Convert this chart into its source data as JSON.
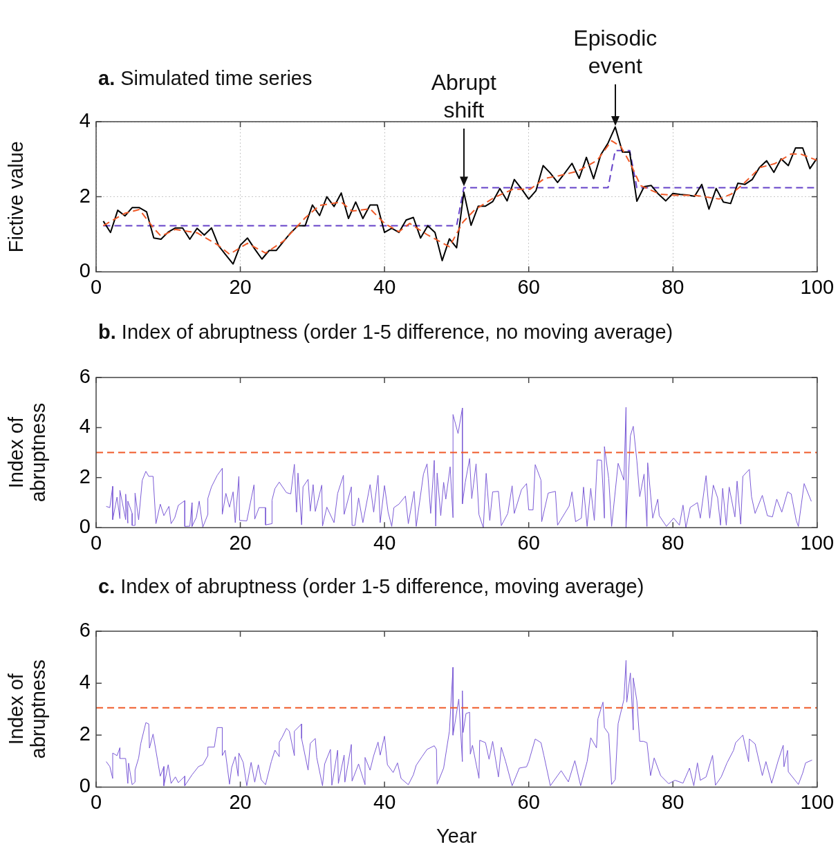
{
  "chart_data": [
    {
      "type": "line",
      "title": "a. Simulated time series",
      "ylabel": "Fictive value",
      "xlim": [
        0,
        100
      ],
      "xticks": [
        0,
        20,
        40,
        60,
        80,
        100
      ],
      "ylim": [
        0,
        4
      ],
      "yticks": [
        0,
        2,
        4
      ],
      "grid": true,
      "marker": "none",
      "x": [
        1,
        2,
        3,
        4,
        5,
        6,
        7,
        8,
        9,
        10,
        11,
        12,
        13,
        14,
        15,
        16,
        17,
        18,
        19,
        20,
        21,
        22,
        23,
        24,
        25,
        26,
        27,
        28,
        29,
        30,
        31,
        32,
        33,
        34,
        35,
        36,
        37,
        38,
        39,
        40,
        41,
        42,
        43,
        44,
        45,
        46,
        47,
        48,
        49,
        50,
        51,
        52,
        53,
        54,
        55,
        56,
        57,
        58,
        59,
        60,
        61,
        62,
        63,
        64,
        65,
        66,
        67,
        68,
        69,
        70,
        71,
        72,
        73,
        74,
        75,
        76,
        77,
        78,
        79,
        80,
        81,
        82,
        83,
        84,
        85,
        86,
        87,
        88,
        89,
        90,
        91,
        92,
        93,
        94,
        95,
        96,
        97,
        98,
        99,
        100
      ],
      "annotations": [
        {
          "text": "Abrupt shift",
          "x": 51,
          "y": 2.24
        },
        {
          "text": "Episodic event",
          "x": 72,
          "y": 3.86
        }
      ],
      "series": [
        {
          "color": "#6440c8",
          "line_style": "dashed",
          "x": [
            1,
            50,
            51,
            71,
            72,
            74,
            75,
            100
          ],
          "values": [
            1.23,
            1.23,
            2.24,
            2.24,
            3.23,
            3.23,
            2.24,
            2.24
          ]
        },
        {
          "color": "#000000",
          "values": [
            1.35,
            1.05,
            1.64,
            1.49,
            1.71,
            1.71,
            1.6,
            0.9,
            0.87,
            1.06,
            1.17,
            1.17,
            0.87,
            1.16,
            0.98,
            1.17,
            0.69,
            0.45,
            0.21,
            0.71,
            0.9,
            0.61,
            0.34,
            0.57,
            0.57,
            0.81,
            1.04,
            1.23,
            1.23,
            1.78,
            1.5,
            2.0,
            1.74,
            2.1,
            1.42,
            1.86,
            1.42,
            1.78,
            1.78,
            1.05,
            1.16,
            1.05,
            1.38,
            1.45,
            0.9,
            1.23,
            1.05,
            0.3,
            0.88,
            0.64,
            2.12,
            1.24,
            1.75,
            1.75,
            1.87,
            2.22,
            1.89,
            2.46,
            2.21,
            1.94,
            2.16,
            2.83,
            2.63,
            2.38,
            2.63,
            2.89,
            2.49,
            3.05,
            2.48,
            3.12,
            3.43,
            3.86,
            3.19,
            3.19,
            1.88,
            2.27,
            2.3,
            2.07,
            1.89,
            2.09,
            2.06,
            2.05,
            2.01,
            2.33,
            1.67,
            2.22,
            1.86,
            1.82,
            2.36,
            2.33,
            2.46,
            2.78,
            2.96,
            2.65,
            3.01,
            2.83,
            3.3,
            3.3,
            2.75,
            3.03
          ]
        },
        {
          "color": "#f05a28",
          "line_style": "dashed",
          "x": [
            1,
            4,
            6,
            8,
            9,
            11,
            14,
            17,
            18.5,
            21,
            23.5,
            26,
            29,
            31,
            34,
            35.5,
            38,
            40,
            42,
            43.5,
            46,
            49,
            50.9,
            52.5,
            55.2,
            57.8,
            60.2,
            62.2,
            64.2,
            66.8,
            69.5,
            71.5,
            72.8,
            74.2,
            75.5,
            78.2,
            80.2,
            82.8,
            84.1,
            86.4,
            88.1,
            89.7,
            92.1,
            94.1,
            96.4,
            97.7,
            100
          ],
          "values": [
            1.23,
            1.56,
            1.66,
            1.16,
            0.95,
            1.13,
            1.04,
            0.7,
            0.47,
            0.76,
            0.5,
            0.82,
            1.44,
            1.77,
            1.86,
            1.62,
            1.68,
            1.29,
            1.07,
            1.29,
            0.98,
            0.67,
            1.33,
            1.65,
            1.98,
            2.2,
            2.2,
            2.49,
            2.56,
            2.68,
            2.97,
            3.49,
            3.33,
            2.85,
            2.3,
            2.07,
            2.04,
            2.04,
            2.01,
            1.94,
            2.07,
            2.33,
            2.78,
            2.88,
            3.14,
            3.14,
            2.97
          ]
        }
      ]
    },
    {
      "type": "line",
      "title": "b. Index of abruptness (order 1-5 difference, no moving average)",
      "ylabel": "Index of abruptness",
      "xlim": [
        0,
        100
      ],
      "xticks": [
        0,
        20,
        40,
        60,
        80,
        100
      ],
      "ylim": [
        0,
        6
      ],
      "yticks": [
        0,
        2,
        4,
        6
      ],
      "marker": "none",
      "ref_lines": [
        {
          "axis": "y",
          "value": 3,
          "color": "#f05a28",
          "line_style": "dashed"
        }
      ],
      "x": [
        1.4,
        1.9,
        2.3,
        2.3,
        2.9,
        3.3,
        3.3,
        4.1,
        4.1,
        4.4,
        4.4,
        5.0,
        5.0,
        5.4,
        5.4,
        5.9,
        6.4,
        6.9,
        7.3,
        7.9,
        8.3,
        8.9,
        9.4,
        10.1,
        10.4,
        10.9,
        11.4,
        12.3,
        12.3,
        13.0,
        13.3,
        13.3,
        13.9,
        14.3,
        14.8,
        15.5,
        15.5,
        16.0,
        16.8,
        17.5,
        17.5,
        18.0,
        18.5,
        19.0,
        19.3,
        19.8,
        19.9,
        20.9,
        21.9,
        22.0,
        22.6,
        23.5,
        23.5,
        24.4,
        24.4,
        24.8,
        25.4,
        26.4,
        27.0,
        27.5,
        27.8,
        28.0,
        28.5,
        28.7,
        29.4,
        29.7,
        30.1,
        30.4,
        31.3,
        31.4,
        32.0,
        33.0,
        33.5,
        34.3,
        34.4,
        35.4,
        35.5,
        35.9,
        36.4,
        37.0,
        38.0,
        38.5,
        39.1,
        39.4,
        40.0,
        40.5,
        41.0,
        41.3,
        42.0,
        42.9,
        43.3,
        44.1,
        44.4,
        45.4,
        45.9,
        46.4,
        46.9,
        47.1,
        47.3,
        47.8,
        48.2,
        48.5,
        49.1,
        49.5,
        49.5,
        50.2,
        50.8,
        50.8,
        51.2,
        51.8,
        52.1,
        52.7,
        53.1,
        53.7,
        54.1,
        54.6,
        55.0,
        55.8,
        56.2,
        57.1,
        57.7,
        58.0,
        59.0,
        59.7,
        60.0,
        60.6,
        60.9,
        61.7,
        61.8,
        62.7,
        63.7,
        64.0,
        65.6,
        66.0,
        66.5,
        67.3,
        67.6,
        68.1,
        68.6,
        69.1,
        69.5,
        70.1,
        70.5,
        70.5,
        71.1,
        71.5,
        72.4,
        73.2,
        73.5,
        73.5,
        74.1,
        74.5,
        75.0,
        75.4,
        76.0,
        76.4,
        76.5,
        77.2,
        77.9,
        78.1,
        79.1,
        80.1,
        80.9,
        81.4,
        81.8,
        82.4,
        83.4,
        83.8,
        84.6,
        85.1,
        85.6,
        86.2,
        86.6,
        86.9,
        87.4,
        87.8,
        88.6,
        88.9,
        89.4,
        89.7,
        90.6,
        90.9,
        91.4,
        92.4,
        93.1,
        93.8,
        94.4,
        95.1,
        95.9,
        96.4,
        97.1,
        97.4,
        98.2,
        99.2
      ],
      "series": [
        {
          "color": "#7b5bd6",
          "values": [
            0.85,
            0.8,
            1.65,
            0.32,
            1.22,
            0.36,
            1.49,
            0.32,
            1.34,
            0.18,
            1.06,
            0.57,
            0.09,
            0.09,
            1.38,
            0.31,
            1.89,
            2.25,
            2.05,
            2.05,
            0.16,
            0.94,
            0.48,
            0.85,
            0.16,
            0.39,
            0.89,
            1.08,
            0.05,
            0.06,
            1.0,
            0.05,
            0.41,
            1.06,
            0.02,
            0.53,
            1.17,
            1.63,
            2.09,
            2.37,
            0.53,
            1.37,
            0.82,
            1.43,
            0.2,
            2.05,
            0.29,
            0.27,
            1.71,
            0.34,
            0.8,
            0.8,
            0.11,
            0.16,
            1.1,
            1.56,
            1.82,
            1.4,
            1.35,
            2.53,
            0.62,
            2.18,
            0.11,
            1.63,
            1.93,
            0.66,
            1.72,
            0.65,
            1.7,
            0.06,
            0.82,
            0.2,
            1.37,
            2.09,
            0.53,
            1.63,
            0.09,
            0.09,
            1.19,
            0.2,
            1.72,
            0.62,
            2.09,
            0.2,
            1.68,
            0.62,
            0.05,
            0.8,
            0.94,
            1.26,
            0.16,
            1.45,
            0.05,
            2.14,
            2.55,
            0.57,
            2.69,
            0.06,
            2.18,
            0.48,
            1.81,
            1.14,
            2.43,
            0.4,
            4.52,
            3.76,
            4.78,
            0.95,
            1.81,
            2.76,
            1.16,
            2.55,
            0.52,
            0.0,
            2.17,
            0.29,
            1.43,
            1.45,
            0.08,
            0.57,
            1.67,
            0.57,
            1.52,
            1.76,
            0.71,
            0.71,
            2.52,
            1.9,
            0.24,
            1.38,
            1.45,
            0.1,
            0.86,
            1.43,
            0.24,
            0.38,
            1.62,
            0.05,
            1.57,
            0.29,
            2.71,
            2.69,
            0.38,
            3.24,
            1.95,
            0.05,
            2.57,
            1.9,
            4.81,
            0.0,
            3.67,
            4.05,
            2.67,
            1.24,
            2.14,
            0.05,
            2.59,
            0.38,
            1.14,
            0.48,
            0.05,
            0.38,
            0.1,
            0.9,
            0.0,
            0.81,
            1.0,
            0.38,
            2.08,
            0.38,
            1.7,
            1.19,
            0.1,
            1.57,
            0.1,
            1.62,
            0.43,
            1.86,
            0.14,
            2.05,
            2.33,
            1.24,
            0.57,
            1.29,
            0.48,
            0.43,
            1.14,
            0.62,
            1.43,
            1.35,
            0.29,
            0.05,
            1.76,
            1.05
          ]
        }
      ]
    },
    {
      "type": "line",
      "title": "c. Index of abruptness (order 1-5 difference, moving average)",
      "xlabel": "Year",
      "ylabel": "Index of abruptness",
      "xlim": [
        0,
        100
      ],
      "xticks": [
        0,
        20,
        40,
        60,
        80,
        100
      ],
      "ylim": [
        0,
        6
      ],
      "yticks": [
        0,
        2,
        4,
        6
      ],
      "marker": "none",
      "ref_lines": [
        {
          "axis": "y",
          "value": 3.05,
          "color": "#f05a28",
          "line_style": "dashed"
        }
      ],
      "x": [
        1.4,
        1.9,
        2.3,
        2.3,
        2.9,
        3.3,
        3.3,
        4.1,
        4.4,
        4.5,
        5.0,
        5.4,
        5.4,
        5.9,
        6.2,
        6.9,
        7.3,
        7.4,
        7.9,
        8.9,
        9.4,
        9.4,
        10.0,
        10.4,
        11.0,
        11.4,
        12.3,
        12.3,
        13.3,
        14.2,
        14.8,
        15.5,
        15.5,
        16.4,
        16.8,
        17.5,
        17.5,
        17.9,
        18.5,
        18.8,
        19.3,
        19.7,
        19.8,
        20.4,
        20.9,
        21.5,
        22.0,
        22.5,
        22.9,
        23.5,
        24.3,
        24.8,
        25.4,
        25.4,
        25.8,
        26.4,
        26.8,
        27.5,
        27.5,
        28.5,
        28.5,
        29.4,
        29.7,
        30.4,
        30.6,
        31.4,
        31.7,
        32.5,
        32.7,
        33.5,
        33.6,
        34.4,
        34.5,
        35.4,
        35.5,
        36.4,
        37.3,
        37.3,
        38.0,
        38.5,
        39.1,
        39.4,
        40.0,
        40.4,
        41.2,
        41.8,
        42.3,
        43.3,
        44.0,
        44.4,
        45.2,
        45.9,
        46.9,
        47.2,
        47.3,
        48.2,
        49.0,
        49.5,
        49.5,
        50.3,
        50.8,
        50.8,
        50.9,
        51.3,
        51.8,
        51.9,
        52.2,
        53.1,
        53.2,
        54.0,
        54.5,
        55.0,
        55.8,
        56.2,
        56.8,
        57.7,
        58.7,
        59.7,
        60.0,
        60.9,
        61.7,
        62.1,
        63.0,
        64.0,
        64.5,
        65.5,
        66.4,
        67.2,
        68.1,
        68.6,
        69.4,
        69.6,
        70.3,
        70.5,
        71.1,
        71.5,
        72.0,
        72.4,
        73.2,
        73.5,
        73.6,
        74.1,
        74.5,
        74.5,
        75.0,
        75.4,
        75.9,
        76.4,
        76.9,
        77.4,
        78.3,
        79.4,
        80.3,
        81.4,
        82.3,
        82.9,
        83.4,
        83.8,
        84.6,
        85.5,
        85.9,
        86.7,
        87.5,
        88.4,
        88.7,
        89.7,
        90.5,
        90.6,
        91.4,
        92.4,
        92.9,
        93.7,
        94.6,
        95.3,
        95.4,
        95.9,
        96.0,
        97.4,
        98.0,
        98.4,
        99.3
      ],
      "series": [
        {
          "color": "#7b5bd6",
          "values": [
            0.98,
            0.79,
            0.33,
            1.31,
            1.21,
            1.51,
            1.1,
            1.1,
            0.14,
            0.92,
            0.09,
            0.19,
            0.65,
            1.12,
            1.68,
            2.48,
            2.43,
            1.5,
            2.04,
            0.42,
            0.79,
            0.05,
            0.86,
            0.14,
            0.39,
            0.17,
            0.42,
            0.05,
            0.47,
            0.79,
            0.86,
            1.21,
            1.54,
            1.54,
            2.29,
            2.29,
            1.21,
            1.42,
            0.11,
            0.75,
            1.17,
            0.42,
            1.31,
            0.95,
            0.05,
            0.95,
            0.19,
            0.86,
            0.28,
            0.09,
            0.98,
            1.42,
            1.17,
            1.73,
            1.92,
            2.26,
            2.15,
            1.21,
            2.15,
            2.43,
            1.87,
            0.65,
            1.68,
            1.87,
            1.14,
            0.05,
            0.89,
            1.45,
            0.07,
            1.42,
            0.14,
            1.23,
            0.19,
            1.64,
            0.23,
            0.89,
            0.09,
            1.14,
            0.65,
            1.21,
            1.73,
            1.23,
            1.96,
            0.86,
            0.56,
            0.93,
            0.33,
            0.09,
            0.47,
            0.84,
            1.17,
            1.45,
            1.59,
            1.45,
            0.11,
            0.73,
            2.15,
            4.61,
            2.0,
            3.39,
            0.98,
            3.71,
            2.1,
            2.83,
            2.88,
            1.27,
            1.61,
            0.34,
            1.8,
            1.71,
            1.07,
            1.76,
            0.39,
            1.53,
            0.98,
            0.05,
            0.73,
            0.78,
            0.98,
            1.85,
            1.71,
            1.22,
            0.05,
            0.44,
            0.63,
            0.2,
            1.02,
            0.05,
            0.98,
            1.9,
            1.51,
            2.63,
            3.27,
            2.29,
            2.05,
            0.1,
            0.29,
            2.44,
            3.37,
            4.88,
            3.27,
            4.39,
            2.2,
            4.2,
            3.32,
            1.76,
            1.76,
            1.71,
            0.44,
            1.12,
            0.44,
            0.13,
            0.26,
            0.15,
            0.73,
            0.05,
            0.93,
            0.26,
            0.39,
            1.22,
            0.07,
            0.39,
            0.93,
            1.41,
            1.71,
            2.0,
            0.98,
            1.85,
            1.66,
            0.44,
            0.98,
            0.15,
            1.02,
            1.61,
            0.78,
            1.41,
            0.59,
            0.1,
            0.54,
            0.93,
            1.04
          ]
        }
      ]
    }
  ]
}
